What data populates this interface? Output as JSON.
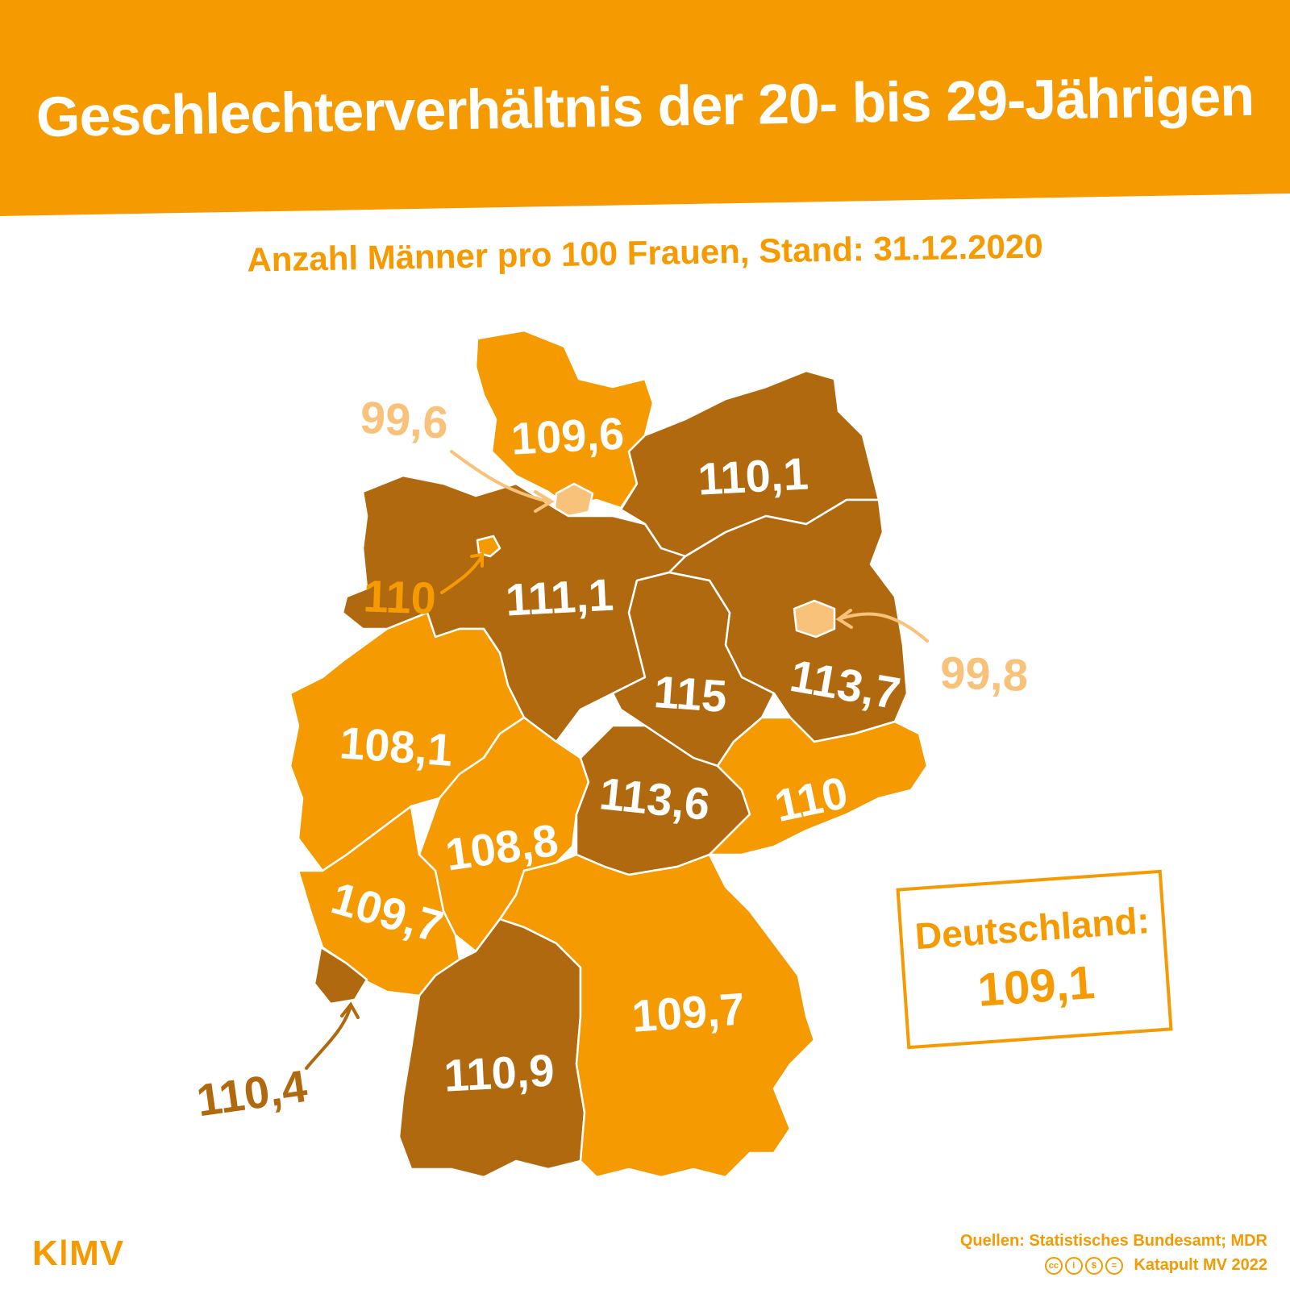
{
  "title": "Geschlechterverhältnis der 20- bis 29-Jährigen",
  "subtitle": "Anzahl Männer pro 100 Frauen, Stand: 31.12.2020",
  "colors": {
    "high": "#b0690f",
    "mid": "#f59a00",
    "low": "#f8c27a",
    "title_band": "#f59a00"
  },
  "regions": [
    {
      "id": "sh",
      "value": "109,6",
      "level": "mid"
    },
    {
      "id": "hh",
      "value": "99,6",
      "level": "low"
    },
    {
      "id": "mv",
      "value": "110,1",
      "level": "high"
    },
    {
      "id": "hb",
      "value": "110",
      "level": "mid"
    },
    {
      "id": "ni",
      "value": "111,1",
      "level": "high"
    },
    {
      "id": "be",
      "value": "99,8",
      "level": "low"
    },
    {
      "id": "bb",
      "value": "113,7",
      "level": "high"
    },
    {
      "id": "st",
      "value": "115",
      "level": "high"
    },
    {
      "id": "nw",
      "value": "108,1",
      "level": "mid"
    },
    {
      "id": "he",
      "value": "108,8",
      "level": "mid"
    },
    {
      "id": "th",
      "value": "113,6",
      "level": "high"
    },
    {
      "id": "sn",
      "value": "110",
      "level": "mid"
    },
    {
      "id": "rp",
      "value": "109,7",
      "level": "mid"
    },
    {
      "id": "sl",
      "value": "110,4",
      "level": "high"
    },
    {
      "id": "bw",
      "value": "110,9",
      "level": "high"
    },
    {
      "id": "by",
      "value": "109,7",
      "level": "mid"
    }
  ],
  "total": {
    "label": "Deutschland:",
    "value": "109,1"
  },
  "logo": "KǀMV",
  "source_line": "Quellen: Statistisches Bundesamt; MDR",
  "credit_line": "Katapult MV 2022",
  "license_icons": [
    "cc-icon",
    "by-icon",
    "nc-icon",
    "nd-icon"
  ]
}
